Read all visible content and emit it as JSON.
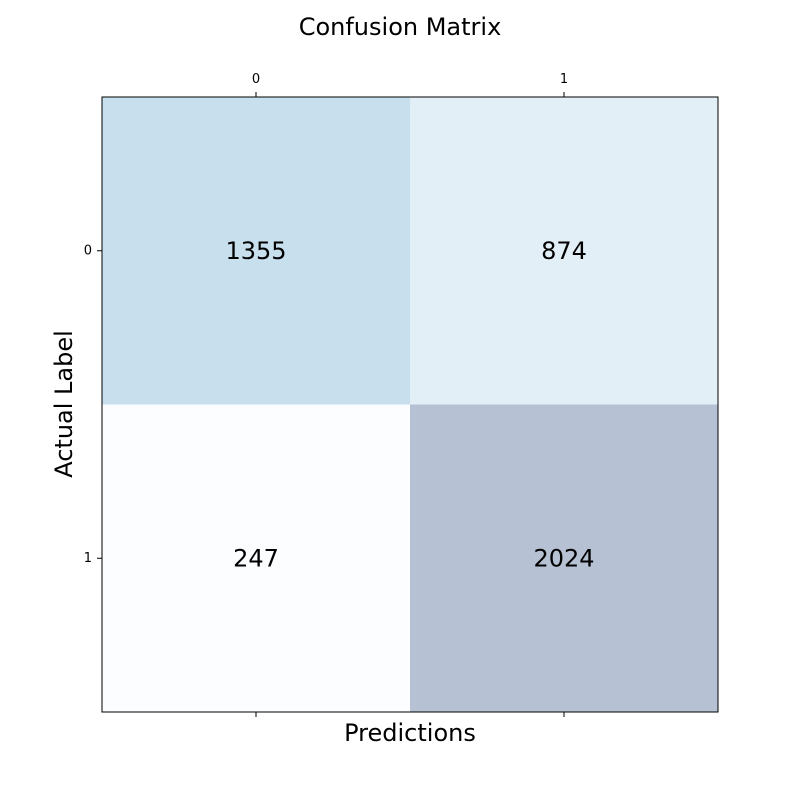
{
  "chart_data": {
    "type": "heatmap",
    "title": "Confusion Matrix",
    "xlabel": "Predictions",
    "ylabel": "Actual Label",
    "x_categories": [
      "0",
      "1"
    ],
    "y_categories": [
      "0",
      "1"
    ],
    "values": [
      [
        1355,
        874
      ],
      [
        247,
        2024
      ]
    ],
    "cell_colors": [
      [
        "#c8dfee",
        "#e3eff6"
      ],
      [
        "#fbfdfe",
        "#b6c2d4"
      ]
    ],
    "x_ticks_position": "top",
    "grid": false
  }
}
